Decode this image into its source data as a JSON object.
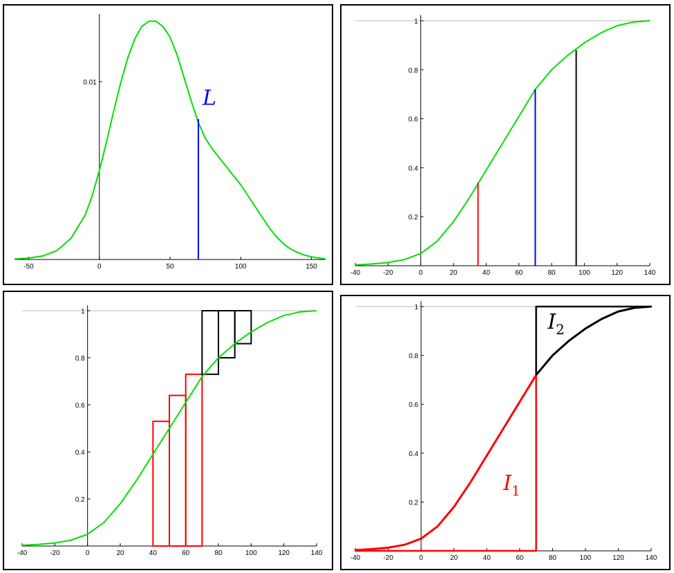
{
  "chart_data": [
    {
      "type": "line",
      "xlim": [
        -60,
        160
      ],
      "ylim": [
        0,
        0.0135
      ],
      "xticks": [
        -50,
        0,
        50,
        100,
        150
      ],
      "xtick_labels": [
        "-50",
        "0",
        "50",
        "100",
        "150"
      ],
      "yticks": [
        0.01
      ],
      "ytick_labels": [
        "0.01"
      ],
      "grid": false,
      "series": [
        {
          "color": "#00e000",
          "x": [
            -60,
            -50,
            -40,
            -30,
            -20,
            -10,
            -5,
            0,
            5,
            10,
            15,
            20,
            25,
            30,
            35,
            40,
            45,
            50,
            55,
            60,
            65,
            70,
            75,
            80,
            85,
            90,
            95,
            100,
            105,
            110,
            115,
            120,
            125,
            130,
            135,
            140,
            145,
            150,
            155,
            160
          ],
          "y": [
            3e-05,
            8e-05,
            0.0002,
            0.0005,
            0.0012,
            0.0025,
            0.0036,
            0.005,
            0.0066,
            0.0083,
            0.0099,
            0.0113,
            0.0124,
            0.0131,
            0.0134,
            0.0134,
            0.0131,
            0.0125,
            0.0115,
            0.0102,
            0.0089,
            0.0077,
            0.0068,
            0.0062,
            0.0057,
            0.0052,
            0.0047,
            0.0042,
            0.0036,
            0.003,
            0.0024,
            0.0018,
            0.0013,
            0.0009,
            0.0006,
            0.0004,
            0.00025,
            0.00015,
            8e-05,
            4e-05
          ]
        }
      ],
      "vlines": [
        {
          "x": 70,
          "y_top": 0.0079,
          "color": "#0000ff"
        }
      ],
      "annotations": [
        {
          "text": "L",
          "x": 73,
          "y": 0.0087,
          "color": "#0000ff"
        }
      ]
    },
    {
      "type": "line",
      "xlim": [
        -40,
        140
      ],
      "ylim": [
        0,
        1
      ],
      "xticks": [
        -40,
        -20,
        0,
        20,
        40,
        60,
        80,
        100,
        120,
        140
      ],
      "xtick_labels": [
        "-40",
        "-20",
        "0",
        "20",
        "40",
        "60",
        "80",
        "100",
        "120",
        "140"
      ],
      "yticks": [
        0.2,
        0.4,
        0.6,
        0.8,
        1
      ],
      "ytick_labels": [
        "0.2",
        "0.4",
        "0.6",
        "0.8",
        "1"
      ],
      "grid": false,
      "series": [
        {
          "color": "#00e000",
          "x": [
            -40,
            -30,
            -20,
            -10,
            0,
            10,
            20,
            30,
            40,
            50,
            60,
            70,
            80,
            90,
            100,
            110,
            120,
            130,
            140
          ],
          "y": [
            0.003,
            0.007,
            0.013,
            0.025,
            0.05,
            0.1,
            0.18,
            0.28,
            0.39,
            0.5,
            0.61,
            0.72,
            0.8,
            0.86,
            0.91,
            0.95,
            0.98,
            0.995,
            1.0
          ]
        }
      ],
      "vlines": [
        {
          "x": 35,
          "y_top": 0.34,
          "color": "#ff0000"
        },
        {
          "x": 70,
          "y_top": 0.72,
          "color": "#0000ff"
        },
        {
          "x": 95,
          "y_top": 0.88,
          "color": "#000000"
        }
      ],
      "hlines": [
        {
          "y": 1,
          "color": "#c8c8c8"
        }
      ]
    },
    {
      "type": "line",
      "xlim": [
        -40,
        140
      ],
      "ylim": [
        0,
        1
      ],
      "xticks": [
        -40,
        -20,
        0,
        20,
        40,
        60,
        80,
        100,
        120,
        140
      ],
      "xtick_labels": [
        "-40",
        "-20",
        "0",
        "20",
        "40",
        "60",
        "80",
        "100",
        "120",
        "140"
      ],
      "yticks": [
        0.2,
        0.4,
        0.6,
        0.8,
        1
      ],
      "ytick_labels": [
        "0.2",
        "0.4",
        "0.6",
        "0.8",
        "1"
      ],
      "grid": false,
      "series": [
        {
          "color": "#00e000",
          "x": [
            -40,
            -30,
            -20,
            -10,
            0,
            10,
            20,
            30,
            40,
            50,
            60,
            70,
            80,
            90,
            100,
            110,
            120,
            130,
            140
          ],
          "y": [
            0.003,
            0.007,
            0.013,
            0.025,
            0.05,
            0.1,
            0.18,
            0.28,
            0.39,
            0.5,
            0.61,
            0.72,
            0.8,
            0.86,
            0.91,
            0.95,
            0.98,
            0.995,
            1.0
          ]
        }
      ],
      "rects": [
        {
          "x0": 40,
          "x1": 50,
          "y0": 0,
          "y1": 0.53,
          "color": "#ff0000"
        },
        {
          "x0": 50,
          "x1": 60,
          "y0": 0,
          "y1": 0.64,
          "color": "#ff0000"
        },
        {
          "x0": 60,
          "x1": 70,
          "y0": 0,
          "y1": 0.73,
          "color": "#ff0000"
        },
        {
          "x0": 70,
          "x1": 80,
          "y0": 0.73,
          "y1": 1,
          "color": "#000000"
        },
        {
          "x0": 80,
          "x1": 90,
          "y0": 0.8,
          "y1": 1,
          "color": "#000000"
        },
        {
          "x0": 90,
          "x1": 100,
          "y0": 0.86,
          "y1": 1,
          "color": "#000000"
        }
      ],
      "hlines": [
        {
          "y": 1,
          "color": "#c8c8c8"
        }
      ]
    },
    {
      "type": "line",
      "xlim": [
        -40,
        140
      ],
      "ylim": [
        0,
        1
      ],
      "xticks": [
        -40,
        -20,
        0,
        20,
        40,
        60,
        80,
        100,
        120,
        140
      ],
      "xtick_labels": [
        "-40",
        "-20",
        "0",
        "20",
        "40",
        "60",
        "80",
        "100",
        "120",
        "140"
      ],
      "yticks": [
        0.2,
        0.4,
        0.6,
        0.8,
        1
      ],
      "ytick_labels": [
        "0.2",
        "0.4",
        "0.6",
        "0.8",
        "1"
      ],
      "grid": false,
      "series": [
        {
          "color": "#ff0000",
          "x": [
            -40,
            -30,
            -20,
            -10,
            0,
            10,
            20,
            30,
            40,
            50,
            60,
            70
          ],
          "y": [
            0.003,
            0.007,
            0.013,
            0.025,
            0.05,
            0.1,
            0.18,
            0.28,
            0.39,
            0.5,
            0.61,
            0.72
          ]
        },
        {
          "color": "#000000",
          "x": [
            70,
            80,
            90,
            100,
            110,
            120,
            130,
            140
          ],
          "y": [
            0.72,
            0.8,
            0.86,
            0.91,
            0.95,
            0.98,
            0.995,
            1.0
          ]
        }
      ],
      "regions": [
        {
          "label": "I1",
          "color": "#ff0000",
          "x0": -40,
          "x1": 70,
          "bound": "below"
        },
        {
          "label": "I2",
          "color": "#000000",
          "x0": 70,
          "x1": 140,
          "bound": "above"
        }
      ],
      "annotations": [
        {
          "text": "I",
          "sub": "1",
          "x": 50,
          "y": 0.25,
          "color": "#ff0000"
        },
        {
          "text": "I",
          "sub": "2",
          "x": 77,
          "y": 0.91,
          "color": "#000000"
        }
      ],
      "hlines": [
        {
          "y": 1,
          "color": "#c8c8c8"
        }
      ]
    }
  ]
}
